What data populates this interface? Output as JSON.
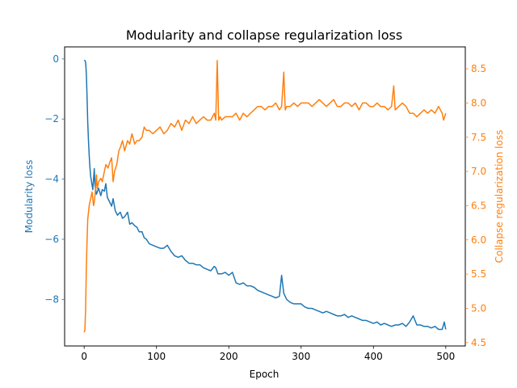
{
  "chart_data": {
    "type": "line",
    "title": "Modularity and collapse regularization loss",
    "xlabel": "Epoch",
    "x_range": [
      -27,
      527
    ],
    "x_ticks": [
      0,
      100,
      200,
      300,
      400,
      500
    ],
    "left_axis": {
      "label": "Modularity loss",
      "color": "#1f77b4",
      "range": [
        -9.55,
        0.4
      ],
      "ticks": [
        0,
        -2,
        -4,
        -6,
        -8
      ]
    },
    "right_axis": {
      "label": "Collapse regularization loss",
      "color": "#ff7f0e",
      "range": [
        4.45,
        8.82
      ],
      "ticks": [
        4.5,
        5.0,
        5.5,
        6.0,
        6.5,
        7.0,
        7.5,
        8.0,
        8.5
      ]
    },
    "series": [
      {
        "axis": "left",
        "color": "#1f77b4",
        "points": [
          [
            0,
            -0.05
          ],
          [
            1,
            -0.05
          ],
          [
            2,
            -0.12
          ],
          [
            3,
            -0.5
          ],
          [
            4,
            -1.3
          ],
          [
            5,
            -2.1
          ],
          [
            6,
            -2.7
          ],
          [
            7,
            -3.2
          ],
          [
            8,
            -3.6
          ],
          [
            9,
            -3.9
          ],
          [
            10,
            -4.05
          ],
          [
            11,
            -4.2
          ],
          [
            12,
            -4.35
          ],
          [
            13,
            -4.0
          ],
          [
            14,
            -3.65
          ],
          [
            15,
            -4.2
          ],
          [
            17,
            -4.5
          ],
          [
            20,
            -4.3
          ],
          [
            23,
            -4.55
          ],
          [
            25,
            -4.35
          ],
          [
            28,
            -4.4
          ],
          [
            30,
            -4.15
          ],
          [
            32,
            -4.6
          ],
          [
            35,
            -4.75
          ],
          [
            38,
            -4.9
          ],
          [
            40,
            -4.65
          ],
          [
            43,
            -5.05
          ],
          [
            46,
            -5.2
          ],
          [
            50,
            -5.1
          ],
          [
            53,
            -5.3
          ],
          [
            56,
            -5.25
          ],
          [
            60,
            -5.1
          ],
          [
            63,
            -5.5
          ],
          [
            66,
            -5.45
          ],
          [
            70,
            -5.55
          ],
          [
            73,
            -5.6
          ],
          [
            76,
            -5.75
          ],
          [
            80,
            -5.75
          ],
          [
            83,
            -5.95
          ],
          [
            86,
            -6.0
          ],
          [
            90,
            -6.15
          ],
          [
            95,
            -6.2
          ],
          [
            100,
            -6.25
          ],
          [
            105,
            -6.3
          ],
          [
            110,
            -6.3
          ],
          [
            115,
            -6.2
          ],
          [
            120,
            -6.4
          ],
          [
            125,
            -6.55
          ],
          [
            130,
            -6.6
          ],
          [
            135,
            -6.55
          ],
          [
            140,
            -6.7
          ],
          [
            145,
            -6.8
          ],
          [
            150,
            -6.8
          ],
          [
            155,
            -6.85
          ],
          [
            160,
            -6.85
          ],
          [
            165,
            -6.95
          ],
          [
            170,
            -7.0
          ],
          [
            175,
            -7.05
          ],
          [
            180,
            -6.9
          ],
          [
            182,
            -6.95
          ],
          [
            185,
            -7.15
          ],
          [
            190,
            -7.15
          ],
          [
            195,
            -7.1
          ],
          [
            200,
            -7.2
          ],
          [
            205,
            -7.1
          ],
          [
            210,
            -7.45
          ],
          [
            215,
            -7.5
          ],
          [
            220,
            -7.45
          ],
          [
            225,
            -7.55
          ],
          [
            230,
            -7.55
          ],
          [
            235,
            -7.6
          ],
          [
            240,
            -7.7
          ],
          [
            245,
            -7.75
          ],
          [
            250,
            -7.8
          ],
          [
            255,
            -7.85
          ],
          [
            260,
            -7.9
          ],
          [
            265,
            -7.95
          ],
          [
            270,
            -7.9
          ],
          [
            273,
            -7.2
          ],
          [
            276,
            -7.8
          ],
          [
            280,
            -8.0
          ],
          [
            285,
            -8.1
          ],
          [
            290,
            -8.15
          ],
          [
            295,
            -8.15
          ],
          [
            300,
            -8.15
          ],
          [
            305,
            -8.25
          ],
          [
            310,
            -8.3
          ],
          [
            315,
            -8.3
          ],
          [
            320,
            -8.35
          ],
          [
            325,
            -8.4
          ],
          [
            330,
            -8.45
          ],
          [
            335,
            -8.4
          ],
          [
            340,
            -8.45
          ],
          [
            345,
            -8.5
          ],
          [
            350,
            -8.55
          ],
          [
            355,
            -8.55
          ],
          [
            360,
            -8.5
          ],
          [
            365,
            -8.6
          ],
          [
            370,
            -8.55
          ],
          [
            375,
            -8.6
          ],
          [
            380,
            -8.65
          ],
          [
            385,
            -8.7
          ],
          [
            390,
            -8.7
          ],
          [
            395,
            -8.75
          ],
          [
            400,
            -8.8
          ],
          [
            405,
            -8.75
          ],
          [
            410,
            -8.85
          ],
          [
            415,
            -8.8
          ],
          [
            420,
            -8.85
          ],
          [
            425,
            -8.9
          ],
          [
            430,
            -8.85
          ],
          [
            435,
            -8.85
          ],
          [
            440,
            -8.8
          ],
          [
            445,
            -8.9
          ],
          [
            450,
            -8.75
          ],
          [
            455,
            -8.55
          ],
          [
            460,
            -8.85
          ],
          [
            465,
            -8.85
          ],
          [
            470,
            -8.9
          ],
          [
            475,
            -8.9
          ],
          [
            480,
            -8.95
          ],
          [
            485,
            -8.9
          ],
          [
            490,
            -9.0
          ],
          [
            495,
            -9.0
          ],
          [
            498,
            -8.75
          ],
          [
            500,
            -9.0
          ]
        ]
      },
      {
        "axis": "right",
        "color": "#ff7f0e",
        "points": [
          [
            0,
            4.65
          ],
          [
            1,
            4.68
          ],
          [
            2,
            5.0
          ],
          [
            3,
            5.6
          ],
          [
            4,
            6.0
          ],
          [
            5,
            6.3
          ],
          [
            6,
            6.4
          ],
          [
            7,
            6.5
          ],
          [
            8,
            6.55
          ],
          [
            9,
            6.6
          ],
          [
            10,
            6.65
          ],
          [
            11,
            6.7
          ],
          [
            12,
            6.6
          ],
          [
            13,
            6.5
          ],
          [
            14,
            6.55
          ],
          [
            15,
            6.65
          ],
          [
            16,
            6.8
          ],
          [
            17,
            6.95
          ],
          [
            18,
            6.75
          ],
          [
            20,
            6.85
          ],
          [
            23,
            6.9
          ],
          [
            25,
            6.85
          ],
          [
            28,
            7.0
          ],
          [
            30,
            7.1
          ],
          [
            33,
            7.05
          ],
          [
            36,
            7.15
          ],
          [
            38,
            7.2
          ],
          [
            40,
            6.85
          ],
          [
            42,
            7.0
          ],
          [
            45,
            7.1
          ],
          [
            48,
            7.3
          ],
          [
            50,
            7.35
          ],
          [
            53,
            7.45
          ],
          [
            56,
            7.3
          ],
          [
            60,
            7.45
          ],
          [
            63,
            7.4
          ],
          [
            66,
            7.55
          ],
          [
            70,
            7.4
          ],
          [
            73,
            7.45
          ],
          [
            76,
            7.45
          ],
          [
            80,
            7.5
          ],
          [
            83,
            7.65
          ],
          [
            86,
            7.6
          ],
          [
            90,
            7.6
          ],
          [
            95,
            7.55
          ],
          [
            100,
            7.6
          ],
          [
            105,
            7.65
          ],
          [
            110,
            7.55
          ],
          [
            115,
            7.6
          ],
          [
            120,
            7.7
          ],
          [
            125,
            7.65
          ],
          [
            130,
            7.75
          ],
          [
            135,
            7.6
          ],
          [
            140,
            7.75
          ],
          [
            145,
            7.7
          ],
          [
            150,
            7.8
          ],
          [
            155,
            7.7
          ],
          [
            160,
            7.75
          ],
          [
            165,
            7.8
          ],
          [
            170,
            7.75
          ],
          [
            175,
            7.75
          ],
          [
            180,
            7.85
          ],
          [
            182,
            7.75
          ],
          [
            184,
            8.62
          ],
          [
            186,
            7.75
          ],
          [
            188,
            7.8
          ],
          [
            190,
            7.75
          ],
          [
            195,
            7.8
          ],
          [
            200,
            7.8
          ],
          [
            205,
            7.8
          ],
          [
            210,
            7.85
          ],
          [
            215,
            7.75
          ],
          [
            220,
            7.85
          ],
          [
            225,
            7.8
          ],
          [
            230,
            7.85
          ],
          [
            235,
            7.9
          ],
          [
            240,
            7.95
          ],
          [
            245,
            7.95
          ],
          [
            250,
            7.9
          ],
          [
            255,
            7.95
          ],
          [
            260,
            7.95
          ],
          [
            265,
            8.0
          ],
          [
            270,
            7.9
          ],
          [
            273,
            7.95
          ],
          [
            276,
            8.45
          ],
          [
            278,
            7.9
          ],
          [
            280,
            7.95
          ],
          [
            285,
            7.95
          ],
          [
            290,
            8.0
          ],
          [
            295,
            7.95
          ],
          [
            300,
            8.0
          ],
          [
            305,
            8.0
          ],
          [
            310,
            8.0
          ],
          [
            315,
            7.95
          ],
          [
            320,
            8.0
          ],
          [
            325,
            8.05
          ],
          [
            330,
            8.0
          ],
          [
            335,
            7.95
          ],
          [
            340,
            8.0
          ],
          [
            345,
            8.05
          ],
          [
            350,
            7.95
          ],
          [
            355,
            7.95
          ],
          [
            360,
            8.0
          ],
          [
            365,
            8.0
          ],
          [
            370,
            7.95
          ],
          [
            375,
            8.0
          ],
          [
            380,
            7.9
          ],
          [
            385,
            8.0
          ],
          [
            390,
            8.0
          ],
          [
            395,
            7.95
          ],
          [
            400,
            7.95
          ],
          [
            405,
            8.0
          ],
          [
            410,
            7.95
          ],
          [
            415,
            7.95
          ],
          [
            420,
            7.9
          ],
          [
            425,
            7.95
          ],
          [
            428,
            8.25
          ],
          [
            430,
            7.9
          ],
          [
            435,
            7.95
          ],
          [
            440,
            8.0
          ],
          [
            445,
            7.95
          ],
          [
            450,
            7.85
          ],
          [
            455,
            7.85
          ],
          [
            460,
            7.8
          ],
          [
            465,
            7.85
          ],
          [
            470,
            7.9
          ],
          [
            475,
            7.85
          ],
          [
            480,
            7.9
          ],
          [
            485,
            7.85
          ],
          [
            490,
            7.95
          ],
          [
            495,
            7.85
          ],
          [
            497,
            7.75
          ],
          [
            500,
            7.85
          ]
        ]
      }
    ]
  }
}
